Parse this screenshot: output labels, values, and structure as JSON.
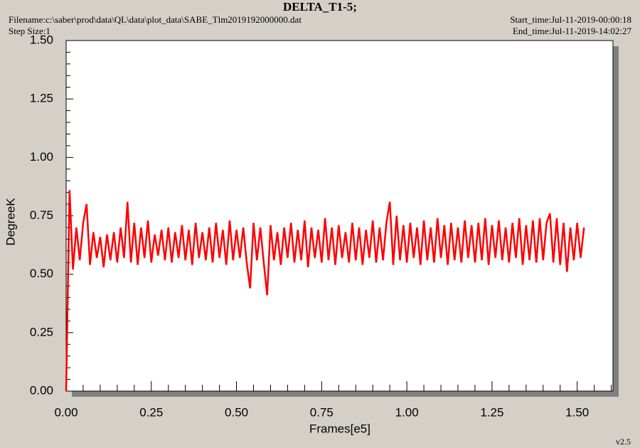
{
  "chart_data": {
    "type": "line",
    "title": "DELTA_T1-5;",
    "filename": "Filename:c:\\saber\\prod\\data\\QL\\data\\plot_data\\SABE_Tlm2019192000000.dat",
    "step_size": "Step Size:1",
    "start_time": "Start_time:Jul-11-2019-00:00:18",
    "end_time": "End_time:Jul-11-2019-14:02:27",
    "version": "v2.5",
    "xlabel": "Frames[e5]",
    "ylabel": "DegreeK",
    "xlim": [
      0,
      1.605
    ],
    "ylim": [
      0,
      1.5
    ],
    "xticks": [
      {
        "value": 0,
        "label": "0.00"
      },
      0.25,
      {
        "value": 0.5,
        "label": "0.50"
      },
      0.75,
      {
        "value": 1,
        "label": "1.00"
      },
      1.25,
      {
        "value": 1.5,
        "label": "1.50"
      }
    ],
    "yticks": [
      {
        "value": 0,
        "label": "0.00"
      },
      0.25,
      {
        "value": 0.5,
        "label": "0.50"
      },
      0.75,
      {
        "value": 1,
        "label": "1.00"
      },
      1.25,
      {
        "value": 1.5,
        "label": "1.50"
      }
    ],
    "x": [
      0,
      0.01,
      0.02,
      0.03,
      0.04,
      0.05,
      0.06,
      0.07,
      0.08,
      0.09,
      0.1,
      0.11,
      0.12,
      0.13,
      0.14,
      0.15,
      0.16,
      0.17,
      0.18,
      0.19,
      0.2,
      0.21,
      0.22,
      0.23,
      0.24,
      0.25,
      0.26,
      0.27,
      0.28,
      0.29,
      0.3,
      0.31,
      0.32,
      0.33,
      0.34,
      0.35,
      0.36,
      0.37,
      0.38,
      0.39,
      0.4,
      0.41,
      0.42,
      0.43,
      0.44,
      0.45,
      0.46,
      0.47,
      0.48,
      0.49,
      0.5,
      0.51,
      0.52,
      0.53,
      0.54,
      0.55,
      0.56,
      0.57,
      0.58,
      0.59,
      0.6,
      0.61,
      0.62,
      0.63,
      0.64,
      0.65,
      0.66,
      0.67,
      0.68,
      0.69,
      0.7,
      0.71,
      0.72,
      0.73,
      0.74,
      0.75,
      0.76,
      0.77,
      0.78,
      0.79,
      0.8,
      0.81,
      0.82,
      0.83,
      0.84,
      0.85,
      0.86,
      0.87,
      0.88,
      0.89,
      0.9,
      0.91,
      0.92,
      0.93,
      0.94,
      0.95,
      0.96,
      0.97,
      0.98,
      0.99,
      1,
      1.01,
      1.02,
      1.03,
      1.04,
      1.05,
      1.06,
      1.07,
      1.08,
      1.09,
      1.1,
      1.11,
      1.12,
      1.13,
      1.14,
      1.15,
      1.16,
      1.17,
      1.18,
      1.19,
      1.2,
      1.21,
      1.22,
      1.23,
      1.24,
      1.25,
      1.26,
      1.27,
      1.28,
      1.29,
      1.3,
      1.31,
      1.32,
      1.33,
      1.34,
      1.35,
      1.36,
      1.37,
      1.38,
      1.39,
      1.4,
      1.41,
      1.42,
      1.43,
      1.44,
      1.45,
      1.46,
      1.47,
      1.48,
      1.49,
      1.5,
      1.51,
      1.52
    ],
    "series": [
      {
        "color": "#ff0000",
        "values": [
          0.0,
          0.86,
          0.52,
          0.7,
          0.56,
          0.72,
          0.8,
          0.54,
          0.68,
          0.57,
          0.66,
          0.53,
          0.67,
          0.56,
          0.68,
          0.55,
          0.7,
          0.57,
          0.81,
          0.55,
          0.72,
          0.54,
          0.7,
          0.57,
          0.73,
          0.55,
          0.67,
          0.58,
          0.69,
          0.56,
          0.7,
          0.55,
          0.68,
          0.57,
          0.71,
          0.56,
          0.69,
          0.54,
          0.72,
          0.57,
          0.68,
          0.56,
          0.7,
          0.55,
          0.72,
          0.57,
          0.69,
          0.54,
          0.73,
          0.56,
          0.69,
          0.57,
          0.7,
          0.55,
          0.44,
          0.72,
          0.56,
          0.7,
          0.55,
          0.41,
          0.71,
          0.56,
          0.68,
          0.54,
          0.7,
          0.57,
          0.72,
          0.55,
          0.69,
          0.56,
          0.73,
          0.53,
          0.7,
          0.57,
          0.69,
          0.55,
          0.74,
          0.56,
          0.7,
          0.54,
          0.71,
          0.57,
          0.68,
          0.55,
          0.72,
          0.56,
          0.7,
          0.54,
          0.69,
          0.57,
          0.73,
          0.55,
          0.7,
          0.56,
          0.72,
          0.81,
          0.54,
          0.75,
          0.56,
          0.71,
          0.55,
          0.72,
          0.57,
          0.7,
          0.54,
          0.73,
          0.56,
          0.7,
          0.55,
          0.74,
          0.57,
          0.71,
          0.54,
          0.72,
          0.56,
          0.7,
          0.55,
          0.73,
          0.57,
          0.71,
          0.55,
          0.72,
          0.56,
          0.74,
          0.54,
          0.71,
          0.57,
          0.73,
          0.56,
          0.7,
          0.55,
          0.72,
          0.57,
          0.74,
          0.54,
          0.71,
          0.56,
          0.73,
          0.55,
          0.74,
          0.56,
          0.72,
          0.76,
          0.55,
          0.74,
          0.54,
          0.72,
          0.51,
          0.7,
          0.56,
          0.72,
          0.57,
          0.7
        ]
      }
    ]
  }
}
